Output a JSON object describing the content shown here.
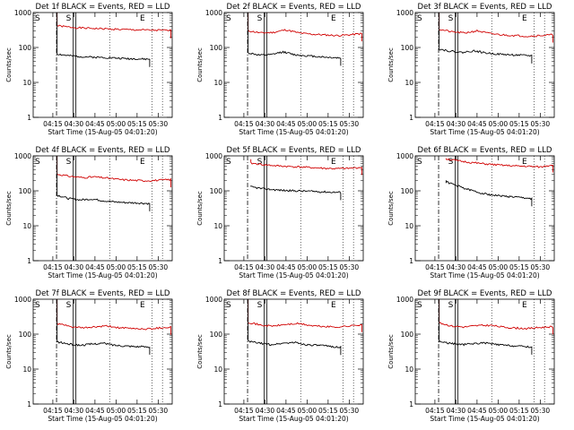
{
  "chart_data": {
    "type": "line",
    "panels": [
      {
        "title": "Det 1f  BLACK = Events, RED = LLD",
        "xlabel": "Start Time (15-Aug-05 04:01:20)",
        "ylabel": "Counts/sec",
        "x_ticks": [
          "04:15",
          "04:30",
          "04:45",
          "05:00",
          "05:15",
          "05:30"
        ],
        "y_ticks": [
          "1",
          "10",
          "100",
          "1000"
        ],
        "ylim": [
          1,
          1000
        ],
        "y_scale": "log",
        "markers": {
          "S": "S",
          "E": "E"
        },
        "series": [
          {
            "color": "#d00000",
            "start": "04:18",
            "end": "05:39",
            "spike": 1000,
            "values": [
              420,
              380,
              360,
              350,
              340,
              330,
              320,
              315,
              310,
              305
            ]
          },
          {
            "color": "#000000",
            "start": "04:18",
            "end": "05:24",
            "spike": 1000,
            "values": [
              65,
              58,
              55,
              53,
              52,
              50,
              48,
              47,
              46
            ]
          }
        ]
      },
      {
        "title": "Det 2f  BLACK = Events, RED = LLD",
        "xlabel": "Start Time (15-Aug-05 04:01:20)",
        "ylabel": "Counts/sec",
        "x_ticks": [
          "04:15",
          "04:30",
          "04:45",
          "05:00",
          "05:15",
          "05:30"
        ],
        "y_ticks": [
          "1",
          "10",
          "100",
          "1000"
        ],
        "ylim": [
          1,
          1000
        ],
        "y_scale": "log",
        "markers": {
          "S": "S",
          "E": "E"
        },
        "series": [
          {
            "color": "#d00000",
            "start": "04:18",
            "end": "05:39",
            "spike": 1000,
            "values": [
              300,
              260,
              270,
              320,
              260,
              240,
              230,
              220,
              230,
              250
            ]
          },
          {
            "color": "#000000",
            "start": "04:18",
            "end": "05:24",
            "spike": 1000,
            "values": [
              70,
              60,
              62,
              75,
              62,
              58,
              55,
              52,
              50
            ]
          }
        ]
      },
      {
        "title": "Det 3f  BLACK = Events, RED = LLD",
        "xlabel": "Start Time (15-Aug-05 04:01:20)",
        "ylabel": "Counts/sec",
        "x_ticks": [
          "04:15",
          "04:30",
          "04:45",
          "05:00",
          "05:15",
          "05:30"
        ],
        "y_ticks": [
          "1",
          "10",
          "100",
          "1000"
        ],
        "ylim": [
          1,
          1000
        ],
        "y_scale": "log",
        "markers": {
          "S": "S",
          "E": "E"
        },
        "series": [
          {
            "color": "#d00000",
            "start": "04:18",
            "end": "05:39",
            "spike": 1000,
            "values": [
              330,
              280,
              260,
              300,
              250,
              230,
              220,
              210,
              220,
              230
            ]
          },
          {
            "color": "#000000",
            "start": "04:18",
            "end": "05:24",
            "spike": 1000,
            "values": [
              90,
              78,
              72,
              80,
              70,
              65,
              62,
              60,
              58
            ]
          }
        ]
      },
      {
        "title": "Det 4f  BLACK = Events, RED = LLD",
        "xlabel": "Start Time (15-Aug-05 04:01:20)",
        "ylabel": "Counts/sec",
        "x_ticks": [
          "04:15",
          "04:30",
          "04:45",
          "05:00",
          "05:15",
          "05:30"
        ],
        "y_ticks": [
          "1",
          "10",
          "100",
          "1000"
        ],
        "ylim": [
          1,
          1000
        ],
        "y_scale": "log",
        "markers": {
          "S": "S",
          "E": "E"
        },
        "series": [
          {
            "color": "#d00000",
            "start": "04:18",
            "end": "05:39",
            "spike": 1000,
            "values": [
              300,
              260,
              240,
              250,
              230,
              210,
              200,
              195,
              200,
              210
            ]
          },
          {
            "color": "#000000",
            "start": "04:18",
            "end": "05:24",
            "spike": 1000,
            "values": [
              75,
              60,
              55,
              58,
              52,
              48,
              46,
              45,
              43
            ]
          }
        ]
      },
      {
        "title": "Det 5f  BLACK = Events, RED = LLD",
        "xlabel": "Start Time (15-Aug-05 04:01:20)",
        "ylabel": "Counts/sec",
        "x_ticks": [
          "04:15",
          "04:30",
          "04:45",
          "05:00",
          "05:15",
          "05:30"
        ],
        "y_ticks": [
          "1",
          "10",
          "100",
          "1000"
        ],
        "ylim": [
          1,
          1000
        ],
        "y_scale": "log",
        "markers": {
          "S": "S",
          "E": "E"
        },
        "series": [
          {
            "color": "#d00000",
            "start": "04:20",
            "end": "05:39",
            "spike": 800,
            "values": [
              620,
              560,
              520,
              500,
              480,
              460,
              440,
              430,
              440,
              470
            ]
          },
          {
            "color": "#000000",
            "start": "04:20",
            "end": "05:24",
            "spike": 140,
            "values": [
              130,
              115,
              108,
              102,
              100,
              98,
              95,
              92,
              90
            ]
          }
        ]
      },
      {
        "title": "Det 6f  BLACK = Events, RED = LLD",
        "xlabel": "Start Time (15-Aug-05 04:01:20)",
        "ylabel": "Counts/sec",
        "x_ticks": [
          "04:15",
          "04:30",
          "04:45",
          "05:00",
          "05:15",
          "05:30"
        ],
        "y_ticks": [
          "1",
          "10",
          "100",
          "1000"
        ],
        "ylim": [
          1,
          1000
        ],
        "y_scale": "log",
        "markers": {
          "S": "S",
          "E": "E"
        },
        "series": [
          {
            "color": "#d00000",
            "start": "04:23",
            "end": "05:39",
            "spike": 850,
            "values": [
              820,
              720,
              650,
              600,
              560,
              530,
              510,
              500,
              480,
              560
            ]
          },
          {
            "color": "#000000",
            "start": "04:23",
            "end": "05:24",
            "spike": 200,
            "values": [
              180,
              140,
              110,
              90,
              78,
              72,
              68,
              64,
              60
            ]
          }
        ]
      },
      {
        "title": "Det 7f  BLACK = Events, RED = LLD",
        "xlabel": "Start Time (15-Aug-05 04:01:20)",
        "ylabel": "Counts/sec",
        "x_ticks": [
          "04:15",
          "04:30",
          "04:45",
          "05:00",
          "05:15",
          "05:30"
        ],
        "y_ticks": [
          "1",
          "10",
          "100",
          "1000"
        ],
        "ylim": [
          1,
          1000
        ],
        "y_scale": "log",
        "markers": {
          "S": "S",
          "E": "E"
        },
        "series": [
          {
            "color": "#d00000",
            "start": "04:18",
            "end": "05:39",
            "spike": 1000,
            "values": [
              200,
              165,
              150,
              160,
              170,
              150,
              145,
              140,
              150,
              160
            ]
          },
          {
            "color": "#000000",
            "start": "04:18",
            "end": "05:24",
            "spike": 1000,
            "values": [
              60,
              52,
              48,
              52,
              55,
              48,
              46,
              44,
              43
            ]
          }
        ]
      },
      {
        "title": "Det 8f  BLACK = Events, RED = LLD",
        "xlabel": "Start Time (15-Aug-05 04:01:20)",
        "ylabel": "Counts/sec",
        "x_ticks": [
          "04:15",
          "04:30",
          "04:45",
          "05:00",
          "05:15",
          "05:30"
        ],
        "y_ticks": [
          "1",
          "10",
          "100",
          "1000"
        ],
        "ylim": [
          1,
          1000
        ],
        "y_scale": "log",
        "markers": {
          "S": "S",
          "E": "E"
        },
        "series": [
          {
            "color": "#d00000",
            "start": "04:18",
            "end": "05:39",
            "spike": 1000,
            "values": [
              220,
              180,
              170,
              190,
              200,
              175,
              165,
              160,
              170,
              190
            ]
          },
          {
            "color": "#000000",
            "start": "04:18",
            "end": "05:24",
            "spike": 1000,
            "values": [
              62,
              55,
              50,
              55,
              58,
              50,
              48,
              45,
              42
            ]
          }
        ]
      },
      {
        "title": "Det 9f  BLACK = Events, RED = LLD",
        "xlabel": "Start Time (15-Aug-05 04:01:20)",
        "ylabel": "Counts/sec",
        "x_ticks": [
          "04:15",
          "04:30",
          "04:45",
          "05:00",
          "05:15",
          "05:30"
        ],
        "y_ticks": [
          "1",
          "10",
          "100",
          "1000"
        ],
        "ylim": [
          1,
          1000
        ],
        "y_scale": "log",
        "markers": {
          "S": "S",
          "E": "E"
        },
        "series": [
          {
            "color": "#d00000",
            "start": "04:18",
            "end": "05:39",
            "spike": 1000,
            "values": [
              210,
              170,
              160,
              175,
              180,
              160,
              150,
              145,
              155,
              165
            ]
          },
          {
            "color": "#000000",
            "start": "04:18",
            "end": "05:24",
            "spike": 1000,
            "values": [
              62,
              54,
              50,
              54,
              56,
              50,
              47,
              45,
              43
            ]
          }
        ]
      }
    ]
  }
}
